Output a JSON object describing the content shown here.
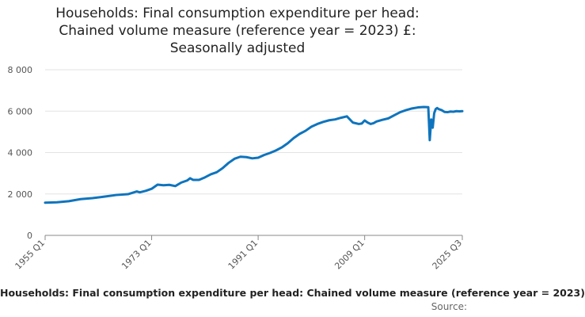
{
  "chart_data": {
    "type": "line",
    "title_lines": [
      "Households: Final consumption expenditure per head:",
      "Chained volume measure (reference year = 2023) £:",
      "Seasonally adjusted"
    ],
    "xlabel": "",
    "ylabel": "",
    "ylim": [
      0,
      8000
    ],
    "yticks": [
      0,
      2000,
      4000,
      6000,
      8000
    ],
    "ytick_labels": [
      "0",
      "2 000",
      "4 000",
      "6 000",
      "8 000"
    ],
    "xlim": [
      1955.0,
      2025.5
    ],
    "xticks": [
      1955.0,
      1973.0,
      1991.0,
      2009.0,
      2025.5
    ],
    "xtick_labels": [
      "1955 Q1",
      "1973 Q1",
      "1991 Q1",
      "2009 Q1",
      "2025 Q3"
    ],
    "grid": true,
    "series": [
      {
        "name": "Households: Final consumption expenditure per head: Chained volume measure (reference year = 2023)",
        "color": "#0f74bd",
        "x": [
          1955.0,
          1957.0,
          1959.0,
          1961.0,
          1963.0,
          1965.0,
          1967.0,
          1969.0,
          1970.5,
          1971.0,
          1972.0,
          1973.0,
          1974.0,
          1975.0,
          1976.0,
          1977.0,
          1978.0,
          1979.0,
          1979.5,
          1980.0,
          1981.0,
          1982.0,
          1983.0,
          1984.0,
          1985.0,
          1986.0,
          1987.0,
          1988.0,
          1989.0,
          1990.0,
          1991.0,
          1992.0,
          1993.0,
          1994.0,
          1995.0,
          1996.0,
          1997.0,
          1998.0,
          1999.0,
          2000.0,
          2001.0,
          2002.0,
          2003.0,
          2004.0,
          2005.0,
          2006.0,
          2007.0,
          2008.0,
          2008.5,
          2009.0,
          2009.5,
          2010.0,
          2010.5,
          2011.0,
          2012.0,
          2013.0,
          2014.0,
          2015.0,
          2016.0,
          2017.0,
          2018.0,
          2019.0,
          2019.75,
          2020.0,
          2020.25,
          2020.5,
          2020.75,
          2021.0,
          2021.25,
          2021.5,
          2022.0,
          2022.5,
          2023.0,
          2023.5,
          2024.0,
          2024.5,
          2025.0,
          2025.5
        ],
        "values": [
          1580,
          1600,
          1650,
          1750,
          1800,
          1870,
          1950,
          1990,
          2120,
          2080,
          2150,
          2250,
          2450,
          2420,
          2440,
          2380,
          2550,
          2650,
          2760,
          2680,
          2680,
          2800,
          2950,
          3050,
          3250,
          3500,
          3700,
          3800,
          3780,
          3720,
          3750,
          3880,
          3980,
          4100,
          4250,
          4450,
          4700,
          4900,
          5050,
          5250,
          5380,
          5480,
          5560,
          5600,
          5680,
          5750,
          5450,
          5380,
          5400,
          5550,
          5450,
          5380,
          5420,
          5500,
          5580,
          5650,
          5800,
          5950,
          6050,
          6130,
          6180,
          6200,
          6190,
          4600,
          5600,
          5200,
          5900,
          6100,
          6150,
          6100,
          6050,
          5960,
          5950,
          5980,
          5970,
          6000,
          5990,
          6000
        ]
      }
    ],
    "legend": "top",
    "source_label": "Source:"
  },
  "legend_text": "Households: Final consumption expenditure per head: Chained volume measure (reference year = 2023)"
}
